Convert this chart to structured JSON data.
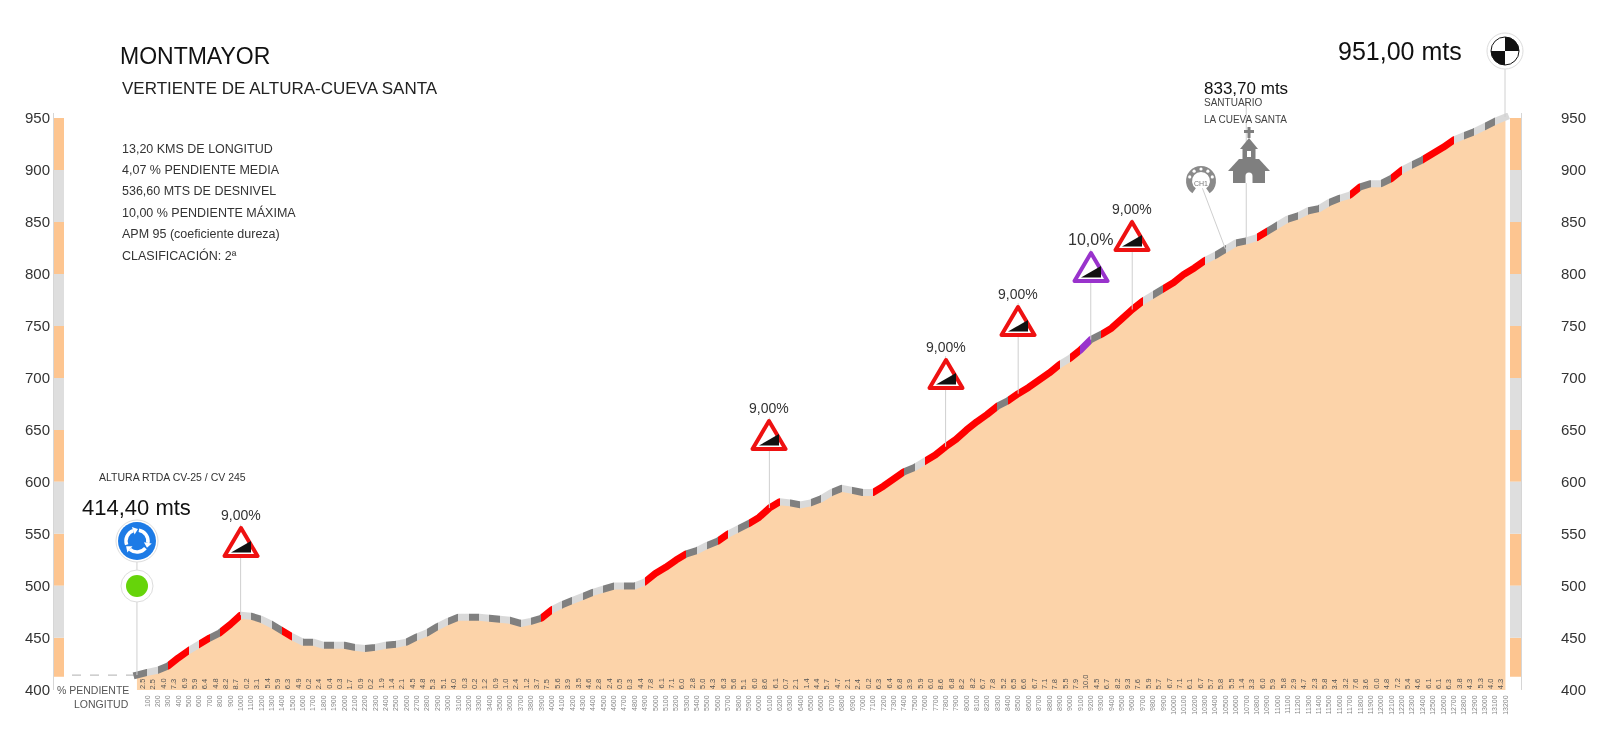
{
  "chart_data": {
    "type": "area",
    "title": "MONTMAYOR",
    "subtitle": "VERTIENTE DE ALTURA-CUEVA SANTA",
    "xlabel": "LONGITUD",
    "x": [
      0,
      100,
      200,
      300,
      400,
      500,
      600,
      700,
      800,
      900,
      1000,
      1100,
      1200,
      1300,
      1400,
      1500,
      1600,
      1700,
      1800,
      1900,
      2000,
      2100,
      2200,
      2300,
      2400,
      2500,
      2600,
      2700,
      2800,
      2900,
      3000,
      3100,
      3200,
      3300,
      3400,
      3500,
      3600,
      3700,
      3800,
      3900,
      4000,
      4100,
      4200,
      4300,
      4400,
      4500,
      4600,
      4700,
      4800,
      4900,
      5000,
      5100,
      5200,
      5300,
      5400,
      5500,
      5600,
      5700,
      5800,
      5900,
      6000,
      6100,
      6200,
      6300,
      6400,
      6500,
      6600,
      6700,
      6800,
      6900,
      7000,
      7100,
      7200,
      7300,
      7400,
      7500,
      7600,
      7700,
      7800,
      7900,
      8000,
      8100,
      8200,
      8300,
      8400,
      8500,
      8600,
      8700,
      8800,
      8900,
      9000,
      9100,
      9200,
      9300,
      9400,
      9500,
      9600,
      9700,
      9800,
      9900,
      10000,
      10100,
      10200,
      10300,
      10400,
      10500,
      10600,
      10700,
      10800,
      10900,
      11000,
      11100,
      11200,
      11300,
      11400,
      11500,
      11600,
      11700,
      11800,
      11900,
      12000,
      12100,
      12200,
      12300,
      12400,
      12500,
      12600,
      12700,
      12800,
      12900,
      13000,
      13100,
      13200
    ],
    "values": [
      414.4,
      417,
      419,
      423,
      431,
      438,
      444,
      450,
      455,
      463,
      472,
      471,
      468,
      463,
      457,
      451,
      446,
      446,
      443,
      443,
      443,
      441,
      440,
      441,
      443,
      444,
      446,
      451,
      455,
      461,
      466,
      470,
      470,
      470,
      469,
      468,
      467,
      464,
      466,
      469,
      477,
      482,
      486,
      490,
      494,
      497,
      500,
      500,
      500,
      504,
      512,
      518,
      525,
      531,
      534,
      539,
      543,
      550,
      555,
      560,
      566,
      575,
      581,
      580,
      578,
      580,
      584,
      590,
      594,
      592,
      590,
      590,
      596,
      603,
      610,
      614,
      620,
      626,
      634,
      641,
      650,
      658,
      665,
      673,
      678,
      685,
      691,
      698,
      705,
      713,
      719,
      727,
      737,
      742,
      748,
      757,
      766,
      774,
      780,
      786,
      792,
      800,
      806,
      813,
      818,
      824,
      830,
      832,
      835,
      841,
      847,
      853,
      856,
      861,
      863,
      869,
      873,
      876,
      884,
      887,
      887,
      892,
      900,
      905,
      910,
      916,
      922,
      929,
      933,
      937,
      942,
      947,
      951
    ],
    "color": "#fcd3a9",
    "colors": [
      "#808080",
      "#808080",
      "#d9d9d9",
      "#808080",
      "#ff0000",
      "#ff0000",
      "#d9d9d9",
      "#ff0000",
      "#808080",
      "#ff0000",
      "#ff0000",
      "#d9d9d9",
      "#808080",
      "#d9d9d9",
      "#808080",
      "#ff0000",
      "#d9d9d9",
      "#808080",
      "#d9d9d9",
      "#808080",
      "#d9d9d9",
      "#808080",
      "#d9d9d9",
      "#808080",
      "#d9d9d9",
      "#808080",
      "#d9d9d9",
      "#808080",
      "#d9d9d9",
      "#808080",
      "#d9d9d9",
      "#808080",
      "#d9d9d9",
      "#808080",
      "#d9d9d9",
      "#808080",
      "#d9d9d9",
      "#808080",
      "#d9d9d9",
      "#808080",
      "#ff0000",
      "#d9d9d9",
      "#808080",
      "#d9d9d9",
      "#808080",
      "#d9d9d9",
      "#808080",
      "#d9d9d9",
      "#808080",
      "#d9d9d9",
      "#ff0000",
      "#ff0000",
      "#ff0000",
      "#ff0000",
      "#808080",
      "#d9d9d9",
      "#808080",
      "#ff0000",
      "#d9d9d9",
      "#808080",
      "#ff0000",
      "#ff0000",
      "#ff0000",
      "#d9d9d9",
      "#808080",
      "#d9d9d9",
      "#808080",
      "#d9d9d9",
      "#808080",
      "#d9d9d9",
      "#808080",
      "#d9d9d9",
      "#ff0000",
      "#ff0000",
      "#ff0000",
      "#808080",
      "#d9d9d9",
      "#ff0000",
      "#ff0000",
      "#ff0000",
      "#ff0000",
      "#ff0000",
      "#ff0000",
      "#ff0000",
      "#808080",
      "#ff0000",
      "#ff0000",
      "#ff0000",
      "#ff0000",
      "#ff0000",
      "#d9d9d9",
      "#ff0000",
      "#9933cc",
      "#808080",
      "#ff0000",
      "#ff0000",
      "#ff0000",
      "#ff0000",
      "#d9d9d9",
      "#808080",
      "#ff0000",
      "#ff0000",
      "#ff0000",
      "#ff0000",
      "#d9d9d9",
      "#808080",
      "#d9d9d9",
      "#808080",
      "#d9d9d9",
      "#ff0000",
      "#808080",
      "#d9d9d9",
      "#808080",
      "#d9d9d9",
      "#808080",
      "#d9d9d9",
      "#808080",
      "#d9d9d9",
      "#ff0000",
      "#808080",
      "#d9d9d9",
      "#808080",
      "#ff0000",
      "#d9d9d9",
      "#808080",
      "#ff0000",
      "#ff0000",
      "#ff0000",
      "#d9d9d9",
      "#808080",
      "#d9d9d9",
      "#808080",
      "#d9d9d9"
    ],
    "xlim": [
      -800,
      13350
    ],
    "xticks": [
      100,
      200,
      300,
      400,
      500,
      600,
      700,
      800,
      900,
      1000,
      1100,
      1200,
      1300,
      1400,
      1500,
      1600,
      1700,
      1800,
      1900,
      2000,
      2100,
      2200,
      2300,
      2400,
      2500,
      2600,
      2700,
      2800,
      2900,
      3000,
      3100,
      3200,
      3300,
      3400,
      3500,
      3600,
      3700,
      3800,
      3900,
      4000,
      4100,
      4200,
      4300,
      4400,
      4500,
      4600,
      4700,
      4800,
      4900,
      5000,
      5100,
      5200,
      5300,
      5400,
      5500,
      5600,
      5700,
      5800,
      5900,
      6000,
      6100,
      6200,
      6300,
      6400,
      6500,
      6600,
      6700,
      6800,
      6900,
      7000,
      7100,
      7200,
      7300,
      7400,
      7500,
      7600,
      7700,
      7800,
      7900,
      8000,
      8100,
      8200,
      8300,
      8400,
      8500,
      8600,
      8700,
      8800,
      8900,
      9000,
      9100,
      9200,
      9300,
      9400,
      9500,
      9600,
      9700,
      9800,
      9900,
      10000,
      10100,
      10200,
      10300,
      10400,
      10500,
      10600,
      10700,
      10800,
      10900,
      11000,
      11100,
      11200,
      11300,
      11400,
      11500,
      11600,
      11700,
      11800,
      11900,
      12000,
      12100,
      12200,
      12300,
      12400,
      12500,
      12600,
      12700,
      12800,
      12900,
      13000,
      13100,
      13200
    ],
    "ylim": [
      400,
      955
    ],
    "yticks": [
      400,
      450,
      500,
      550,
      600,
      650,
      700,
      750,
      800,
      850,
      900,
      950
    ],
    "y2lim": [
      400,
      955
    ],
    "y2ticks": [
      400,
      450,
      500,
      550,
      600,
      650,
      700,
      750,
      800,
      850,
      900,
      950
    ],
    "ref_lines": [
      {
        "axis": "y",
        "value": 414.4,
        "color": "#c0c0c0",
        "line_style": "dashed"
      }
    ],
    "annotations": [
      "13,20 KMS DE LONGITUD",
      "4,07 % PENDIENTE MEDIA",
      "536,60 MTS DE DESNIVEL",
      "10,00 % PENDIENTE MÁXIMA",
      "APM 95 (coeficiente dureza)",
      "CLASIFICACIÓN: 2ª",
      "ALTURA RTDA CV-25 / CV 245",
      {
        "text": "414,40 mts",
        "x": 0,
        "y": 414.4
      },
      {
        "text": "9,00%",
        "x": 1000,
        "y": 472
      },
      {
        "text": "9,00%",
        "x": 6100,
        "y": 575
      },
      {
        "text": "9,00%",
        "x": 7800,
        "y": 634
      },
      {
        "text": "9,00%",
        "x": 8500,
        "y": 685
      },
      {
        "text": "10,0%",
        "x": 9200,
        "y": 737
      },
      {
        "text": "9,00%",
        "x": 9600,
        "y": 766
      },
      {
        "text": "CH1",
        "x": 10500,
        "y": 824
      },
      {
        "text": "833,70 mts",
        "x": 10700,
        "y": 833.7
      },
      "SANTUARIO",
      "LA CUEVA SANTA",
      {
        "text": "951,00 mts",
        "x": 13200,
        "y": 951
      },
      "% PENDIENTE",
      "2.5",
      "2.5",
      "4.0",
      "7.3",
      "6.9",
      "5.9",
      "6.4",
      "4.8",
      "8.2",
      "8.7",
      "0.2",
      "3.1",
      "5.4",
      "5.9",
      "6.3",
      "4.9",
      "0.2",
      "2.4",
      "0.4",
      "0.3",
      "1.7",
      "0.9",
      "0.2",
      "1.9",
      "1.4",
      "2.1",
      "4.5",
      "4.8",
      "5.3",
      "5.1",
      "4.0",
      "0.3",
      "0.2",
      "1.2",
      "0.9",
      "1.0",
      "2.4",
      "1.2",
      "3.7",
      "7.5",
      "5.6",
      "3.9",
      "3.5",
      "4.6",
      "2.8",
      "2.4",
      "0.5",
      "0.3",
      "4.4",
      "7.8",
      "6.1",
      "7.1",
      "6.0",
      "2.8",
      "5.0",
      "4.3",
      "6.3",
      "5.6",
      "5.1",
      "6.0",
      "8.6",
      "6.1",
      "0.7",
      "2.1",
      "1.4",
      "4.4",
      "5.7",
      "4.7",
      "2.1",
      "2.4",
      "0.2",
      "6.3",
      "6.4",
      "6.8",
      "3.9",
      "5.9",
      "6.0",
      "8.6",
      "6.8",
      "8.2",
      "8.2",
      "6.7",
      "7.8",
      "5.2",
      "6.5",
      "6.6",
      "6.7",
      "7.1",
      "7.8",
      "5.5",
      "7.9",
      "10.0",
      "4.5",
      "6.7",
      "8.2",
      "9.3",
      "7.6",
      "5.9",
      "5.7",
      "6.7",
      "7.1",
      "6.1",
      "6.7",
      "5.7",
      "5.8",
      "5.5",
      "1.4",
      "3.3",
      "6.0",
      "5.9",
      "5.8",
      "2.9",
      "4.7",
      "2.3",
      "5.8",
      "3.4",
      "3.2",
      "7.6",
      "3.6",
      "0.0",
      "4.8",
      "7.2",
      "5.4",
      "4.6",
      "6.1",
      "6.1",
      "6.3",
      "3.8",
      "4.3",
      "5.3",
      "4.0",
      "4.3"
    ]
  }
}
